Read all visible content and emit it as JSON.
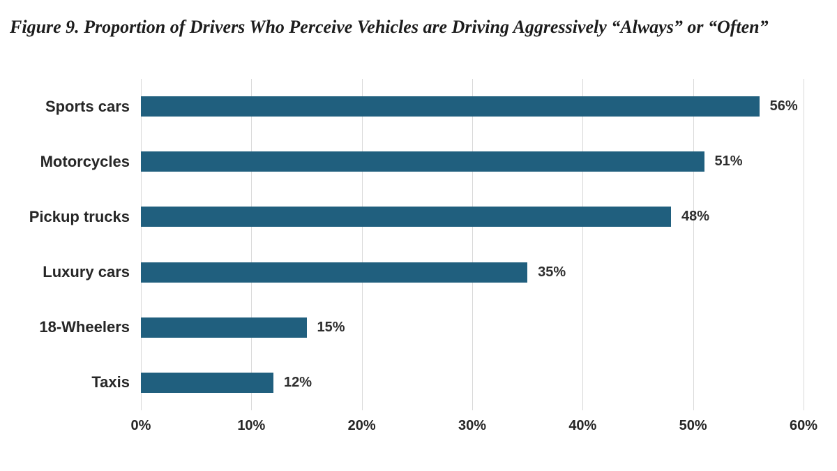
{
  "figure": {
    "title": "Figure 9. Proportion of Drivers Who Perceive Vehicles are Driving Aggressively “Always” or “Often”"
  },
  "chart_data": {
    "type": "bar",
    "orientation": "horizontal",
    "title": "Figure 9. Proportion of Drivers Who Perceive Vehicles are Driving Aggressively “Always” or “Often”",
    "categories": [
      "Sports cars",
      "Motorcycles",
      "Pickup trucks",
      "Luxury cars",
      "18-Wheelers",
      "Taxis"
    ],
    "values": [
      56,
      51,
      48,
      35,
      15,
      12
    ],
    "value_labels": [
      "56%",
      "51%",
      "48%",
      "35%",
      "15%",
      "12%"
    ],
    "x_ticks": [
      "0%",
      "10%",
      "20%",
      "30%",
      "40%",
      "50%",
      "60%"
    ],
    "x_tick_values": [
      0,
      10,
      20,
      30,
      40,
      50,
      60
    ],
    "xlim": [
      0,
      60
    ],
    "xlabel": "",
    "ylabel": "",
    "legend": "none",
    "grid": "vertical",
    "colors": {
      "bar": "#205F7E",
      "gridline": "#D9D9D9",
      "label_text": "#262626",
      "value_text": "#2E2E2E",
      "title_text": "#1C1C1C",
      "background": "#FFFFFF"
    }
  }
}
